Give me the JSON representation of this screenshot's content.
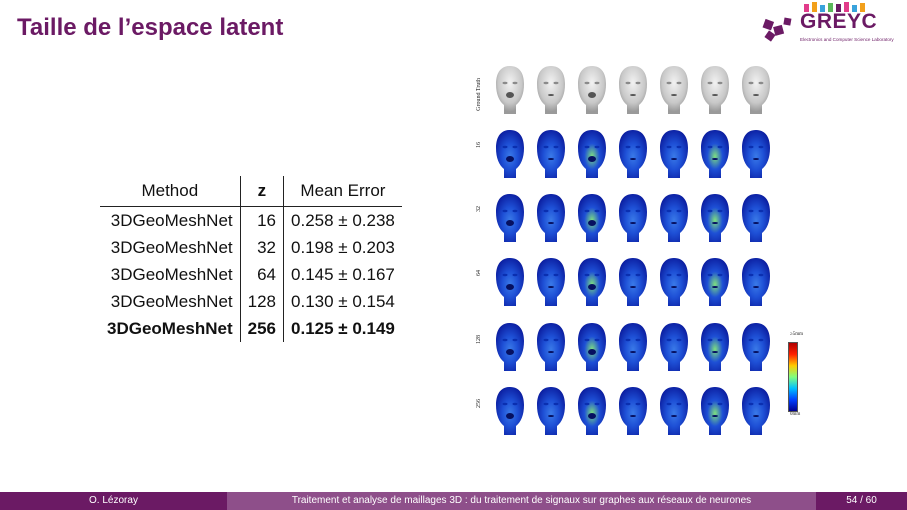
{
  "slide": {
    "title": "Taille de l’espace latent",
    "logo": {
      "word": "GREYC",
      "tagline": "Electronics and Computer Science Laboratory"
    }
  },
  "table": {
    "headers": [
      "Method",
      "z",
      "Mean Error"
    ],
    "rows": [
      {
        "method": "3DGeoMeshNet",
        "z": "16",
        "error": "0.258 ± 0.238",
        "bold": false
      },
      {
        "method": "3DGeoMeshNet",
        "z": "32",
        "error": "0.198 ± 0.203",
        "bold": false
      },
      {
        "method": "3DGeoMeshNet",
        "z": "64",
        "error": "0.145 ± 0.167",
        "bold": false
      },
      {
        "method": "3DGeoMeshNet",
        "z": "128",
        "error": "0.130 ± 0.154",
        "bold": false
      },
      {
        "method": "3DGeoMeshNet",
        "z": "256",
        "error": "0.125 ± 0.149",
        "bold": true
      }
    ]
  },
  "figure": {
    "row_labels": [
      "Ground Truth",
      "16",
      "32",
      "64",
      "128",
      "256"
    ],
    "columns": 7,
    "colorbar": {
      "top": "≥5mm",
      "bottom": "0mm"
    }
  },
  "footer": {
    "author": "O. Lézoray",
    "talk_title": "Traitement et analyse de maillages 3D : du traitement de signaux sur graphes aux réseaux de neurones",
    "page": "54 / 60"
  }
}
